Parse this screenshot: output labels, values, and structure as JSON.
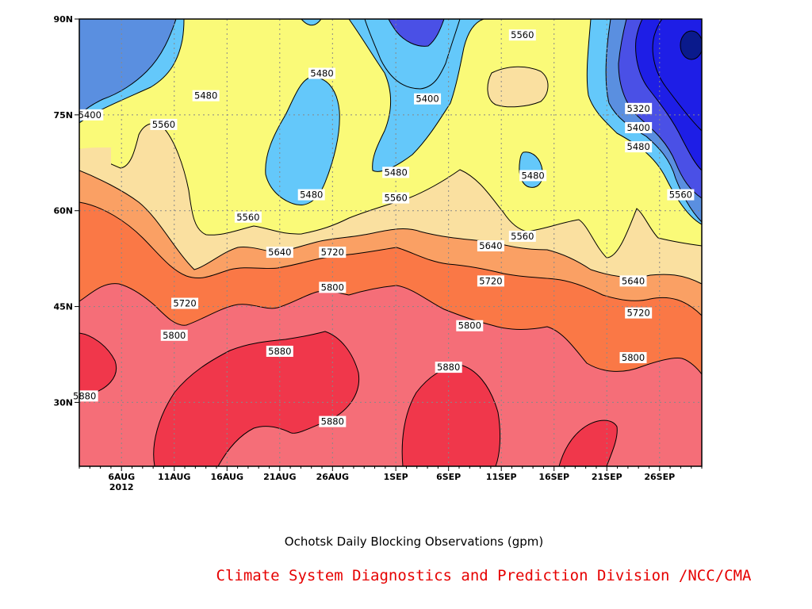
{
  "chart_data": {
    "type": "contour",
    "title": "Ochotsk Daily Blocking Observations (gpm)",
    "credit": "Climate System Diagnostics and Prediction Division /NCC/CMA",
    "x_ticks": [
      {
        "label": "6AUG",
        "sub": "2012",
        "day": 4
      },
      {
        "label": "11AUG",
        "day": 9
      },
      {
        "label": "16AUG",
        "day": 14
      },
      {
        "label": "21AUG",
        "day": 19
      },
      {
        "label": "26AUG",
        "day": 24
      },
      {
        "label": "1SEP",
        "day": 30
      },
      {
        "label": "6SEP",
        "day": 35
      },
      {
        "label": "11SEP",
        "day": 40
      },
      {
        "label": "16SEP",
        "day": 45
      },
      {
        "label": "21SEP",
        "day": 50
      },
      {
        "label": "26SEP",
        "day": 55
      }
    ],
    "y_ticks": [
      "30N",
      "45N",
      "60N",
      "75N",
      "90N"
    ],
    "contour_levels": [
      5320,
      5400,
      5480,
      5560,
      5640,
      5720,
      5800,
      5880
    ],
    "colors": {
      "deep_blue": "#0a1a8c",
      "blue_5320": "#1e1ee6",
      "blue_5400": "#4a50e6",
      "blue_5480": "#5a8fe0",
      "light_blue": "#64c8fa",
      "yellow": "#fafa78",
      "tan": "#fae0a0",
      "light_orange": "#faa064",
      "orange": "#fa7846",
      "pink": "#f56e78",
      "red": "#f0374b"
    },
    "contour_labels": [
      {
        "text": "5400",
        "day": 1,
        "lat": 75
      },
      {
        "text": "5480",
        "day": 12,
        "lat": 78
      },
      {
        "text": "5560",
        "day": 8,
        "lat": 73.5
      },
      {
        "text": "5480",
        "day": 23,
        "lat": 81.5
      },
      {
        "text": "5480",
        "day": 22,
        "lat": 62.5
      },
      {
        "text": "5560",
        "day": 16,
        "lat": 59
      },
      {
        "text": "5640",
        "day": 19,
        "lat": 53.5
      },
      {
        "text": "5720",
        "day": 24,
        "lat": 53.5
      },
      {
        "text": "5800",
        "day": 24,
        "lat": 48
      },
      {
        "text": "5720",
        "day": 10,
        "lat": 45.5
      },
      {
        "text": "5800",
        "day": 9,
        "lat": 40.5
      },
      {
        "text": "5880",
        "day": 19,
        "lat": 38
      },
      {
        "text": "5880",
        "day": 24,
        "lat": 27
      },
      {
        "text": "5880",
        "day": 0.5,
        "lat": 31
      },
      {
        "text": "5400",
        "day": 33,
        "lat": 77.5
      },
      {
        "text": "5480",
        "day": 30,
        "lat": 66
      },
      {
        "text": "5560",
        "day": 30,
        "lat": 62
      },
      {
        "text": "5560",
        "day": 42,
        "lat": 87.5
      },
      {
        "text": "5480",
        "day": 43,
        "lat": 65.5
      },
      {
        "text": "5560",
        "day": 42,
        "lat": 56
      },
      {
        "text": "5640",
        "day": 39,
        "lat": 54.5
      },
      {
        "text": "5720",
        "day": 39,
        "lat": 49
      },
      {
        "text": "5800",
        "day": 37,
        "lat": 42
      },
      {
        "text": "5880",
        "day": 35,
        "lat": 35.5
      },
      {
        "text": "5320",
        "day": 53,
        "lat": 76
      },
      {
        "text": "5400",
        "day": 53,
        "lat": 73
      },
      {
        "text": "5480",
        "day": 53,
        "lat": 70
      },
      {
        "text": "5560",
        "day": 57,
        "lat": 62.5
      },
      {
        "text": "5640",
        "day": 52.5,
        "lat": 49
      },
      {
        "text": "5720",
        "day": 53,
        "lat": 44
      },
      {
        "text": "5800",
        "day": 52.5,
        "lat": 37
      }
    ]
  }
}
